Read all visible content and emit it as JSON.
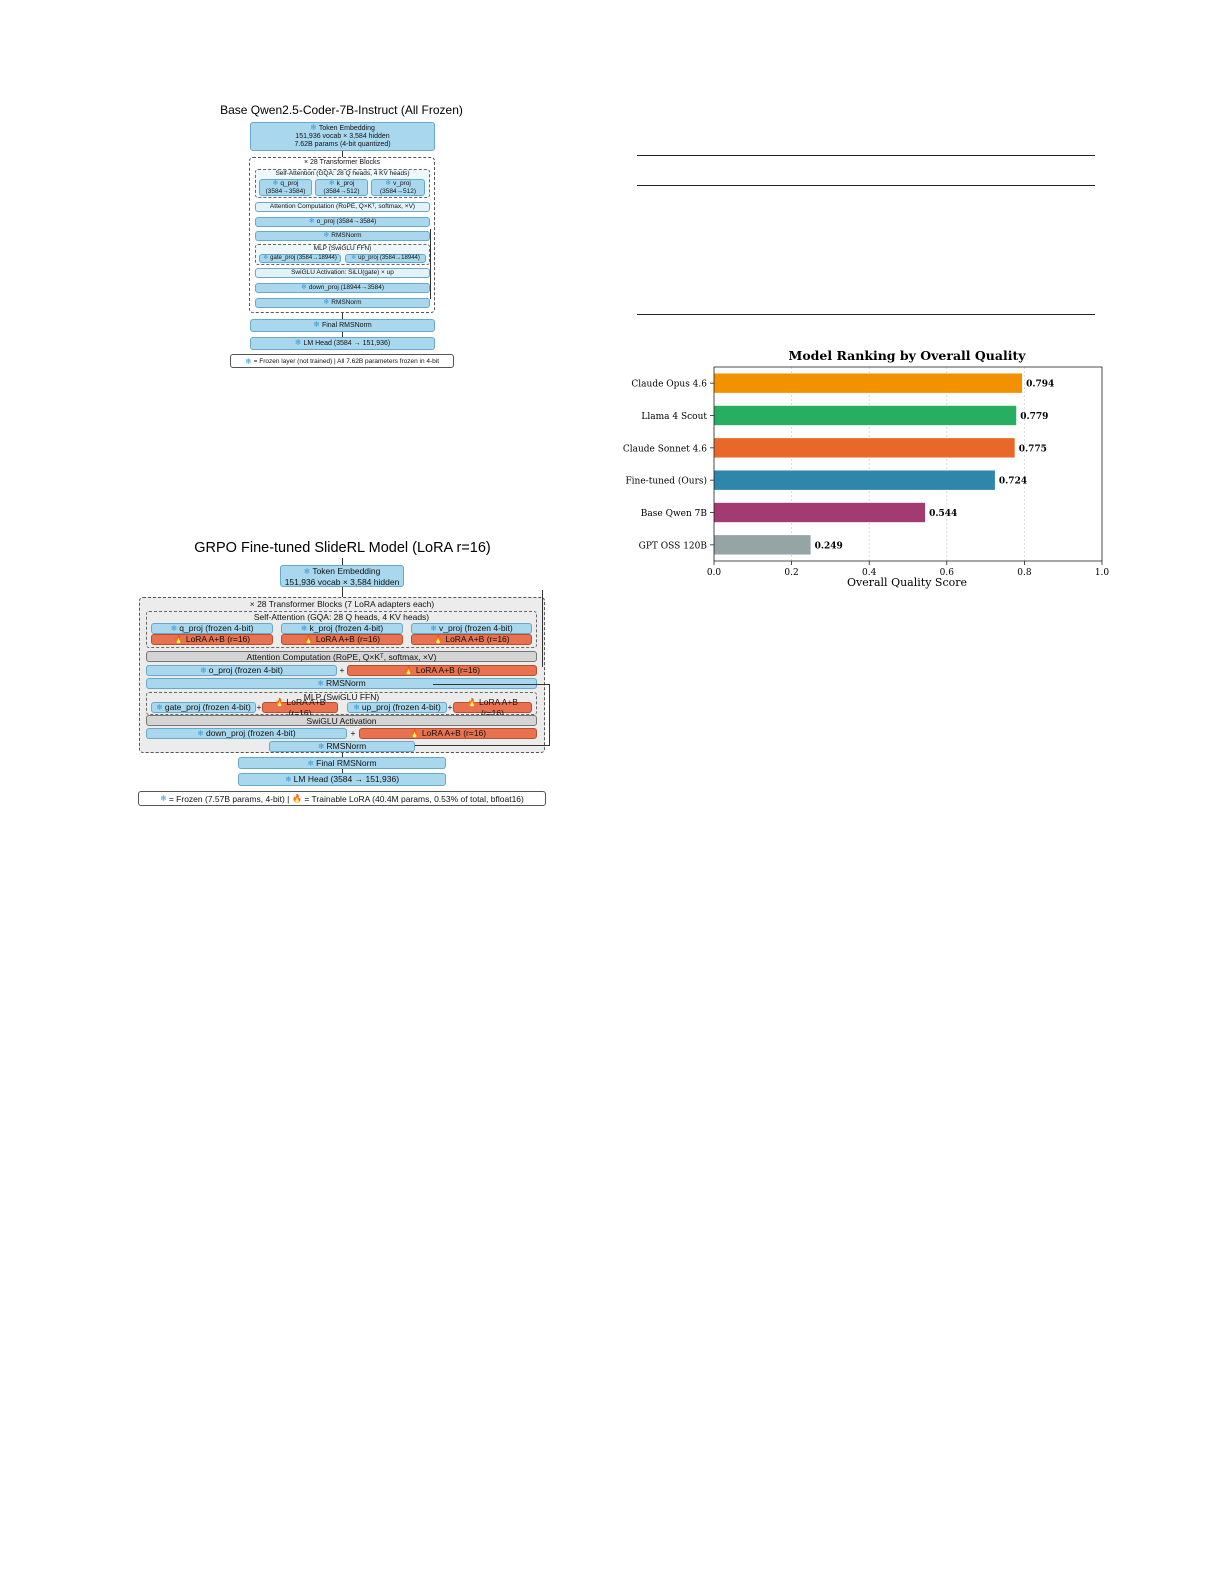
{
  "figure1": {
    "title": "Base Qwen2.5-Coder-7B-Instruct (All Frozen)",
    "token_embedding": [
      "Token Embedding",
      "151,936 vocab × 3,584 hidden",
      "7.62B params (4-bit quantized)"
    ],
    "blocks_title": "× 28 Transformer Blocks",
    "self_attention": "Self-Attention (GQA: 28 Q heads, 4 KV heads)",
    "q_proj": [
      "q_proj",
      "(3584→3584)"
    ],
    "k_proj": [
      "k_proj",
      "(3584→512)"
    ],
    "v_proj": [
      "v_proj",
      "(3584→512)"
    ],
    "attention_computation": "Attention Computation (RoPE, Q×Kᵀ, softmax, ×V)",
    "o_proj": "o_proj (3584→3584)",
    "rmsnorm": "RMSNorm",
    "mlp": "MLP (SwiGLU FFN)",
    "gate_proj": "gate_proj (3584→18944)",
    "up_proj": "up_proj (3584→18944)",
    "swiglu": "SwiGLU Activation: SiLU(gate) × up",
    "down_proj": "down_proj (18944→3584)",
    "rmsnorm2": "RMSNorm",
    "final_rmsnorm": "Final RMSNorm",
    "lm_head": "LM Head (3584 → 151,936)",
    "legend": "= Frozen layer (not trained) | All 7.62B parameters frozen in 4-bit"
  },
  "figure2": {
    "title": "GRPO Fine-tuned SlideRL Model (LoRA r=16)",
    "token_embedding": [
      "Token Embedding",
      "151,936 vocab × 3,584 hidden"
    ],
    "blocks_title": "× 28 Transformer Blocks (7 LoRA adapters each)",
    "self_attention": "Self-Attention (GQA: 28 Q heads, 4 KV heads)",
    "q_proj": "q_proj (frozen 4-bit)",
    "k_proj": "k_proj (frozen 4-bit)",
    "v_proj": "v_proj (frozen 4-bit)",
    "lora": "LoRA A+B (r=16)",
    "attention_computation": "Attention Computation (RoPE, Q×Kᵀ, softmax, ×V)",
    "o_proj": "o_proj (frozen 4-bit)",
    "plus": "+",
    "rmsnorm": "RMSNorm",
    "mlp": "MLP (SwiGLU FFN)",
    "gate_proj": "gate_proj (frozen 4-bit)",
    "up_proj": "up_proj (frozen 4-bit)",
    "swiglu": "SwiGLU Activation",
    "down_proj": "down_proj (frozen 4-bit)",
    "rmsnorm2": "RMSNorm",
    "final_rmsnorm": "Final RMSNorm",
    "lm_head": "LM Head (3584 → 151,936)",
    "legend_frozen": "= Frozen (7.57B params, 4-bit) |",
    "legend_lora": "= Trainable LoRA (40.4M params, 0.53% of total, bfloat16)"
  },
  "chart_data": {
    "type": "bar",
    "orientation": "horizontal",
    "title": "Model Ranking by Overall Quality",
    "xlabel": "Overall Quality Score",
    "ylabel": "",
    "xlim": [
      0.0,
      1.0
    ],
    "xticks": [
      "0.0",
      "0.2",
      "0.4",
      "0.6",
      "0.8",
      "1.0"
    ],
    "grid": true,
    "categories": [
      "Claude Opus 4.6",
      "Llama 4 Scout",
      "Claude Sonnet 4.6",
      "Fine-tuned (Ours)",
      "Base Qwen 7B",
      "GPT OSS 120B"
    ],
    "values": [
      0.794,
      0.779,
      0.775,
      0.724,
      0.544,
      0.249
    ],
    "labels": [
      "0.794",
      "0.779",
      "0.775",
      "0.724",
      "0.544",
      "0.249"
    ],
    "colors": [
      "#f39200",
      "#27ae60",
      "#e8682a",
      "#2e86ab",
      "#a23b72",
      "#95a5a6"
    ]
  }
}
